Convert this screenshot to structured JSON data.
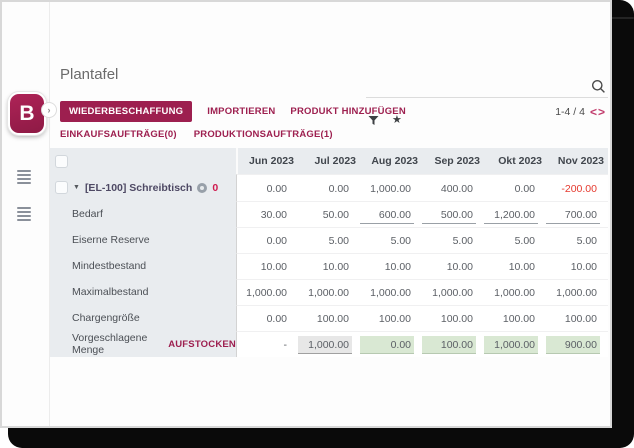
{
  "window": {
    "logo_letter": "B",
    "expand_chevron": "›"
  },
  "header": {
    "title": "Plantafel"
  },
  "search": {
    "placeholder": ""
  },
  "toolbar": {
    "primary_button": "WIEDERBESCHAFFUNG",
    "secondary_buttons": [
      "IMPORTIEREN",
      "PRODUKT HINZUFÜGEN"
    ],
    "link_buttons": [
      "EINKAUFSAUFTRÄGE(0)",
      "PRODUKTIONSAUFTRÄGE(1)"
    ],
    "pager": {
      "range": "1-4 / 4",
      "prev": "<",
      "next": ">"
    },
    "favorite_icon": "★"
  },
  "colors": {
    "brand": "#9d1f4f",
    "negative": "#e5392e",
    "green_cell": "#d9e8d3",
    "gray_cell": "#e7e7e7",
    "label_column_bg": "#e9ecef"
  },
  "table": {
    "columns": [
      "Jun 2023",
      "Jul 2023",
      "Aug 2023",
      "Sep 2023",
      "Okt 2023",
      "Nov 2023"
    ],
    "product_row": {
      "label": "[EL-100] Schreibtisch",
      "count_badge": "0",
      "values": [
        "0.00",
        "0.00",
        "1,000.00",
        "400.00",
        "0.00",
        "-200.00"
      ],
      "styles": [
        "plain",
        "plain",
        "plain",
        "plain",
        "plain",
        "negative"
      ]
    },
    "rows": [
      {
        "label": "Bedarf",
        "action": "",
        "values": [
          "30.00",
          "50.00",
          "600.00",
          "500.00",
          "1,200.00",
          "700.00"
        ],
        "styles": [
          "plain",
          "plain",
          "input",
          "input",
          "input",
          "input"
        ]
      },
      {
        "label": "Eiserne Reserve",
        "action": "",
        "values": [
          "0.00",
          "5.00",
          "5.00",
          "5.00",
          "5.00",
          "5.00"
        ],
        "styles": [
          "plain",
          "plain",
          "plain",
          "plain",
          "plain",
          "plain"
        ]
      },
      {
        "label": "Mindestbestand",
        "action": "",
        "values": [
          "10.00",
          "10.00",
          "10.00",
          "10.00",
          "10.00",
          "10.00"
        ],
        "styles": [
          "plain",
          "plain",
          "plain",
          "plain",
          "plain",
          "plain"
        ]
      },
      {
        "label": "Maximalbestand",
        "action": "",
        "values": [
          "1,000.00",
          "1,000.00",
          "1,000.00",
          "1,000.00",
          "1,000.00",
          "1,000.00"
        ],
        "styles": [
          "plain",
          "plain",
          "plain",
          "plain",
          "plain",
          "plain"
        ]
      },
      {
        "label": "Chargengröße",
        "action": "",
        "values": [
          "0.00",
          "100.00",
          "100.00",
          "100.00",
          "100.00",
          "100.00"
        ],
        "styles": [
          "plain",
          "plain",
          "plain",
          "plain",
          "plain",
          "plain"
        ]
      },
      {
        "label": "Vorgeschlagene Menge",
        "action": "AUFSTOCKEN",
        "values": [
          "-",
          "1,000.00",
          "0.00",
          "100.00",
          "1,000.00",
          "900.00"
        ],
        "styles": [
          "plain",
          "gray-input",
          "green-input",
          "green-input",
          "green-input",
          "green-input"
        ]
      }
    ]
  }
}
